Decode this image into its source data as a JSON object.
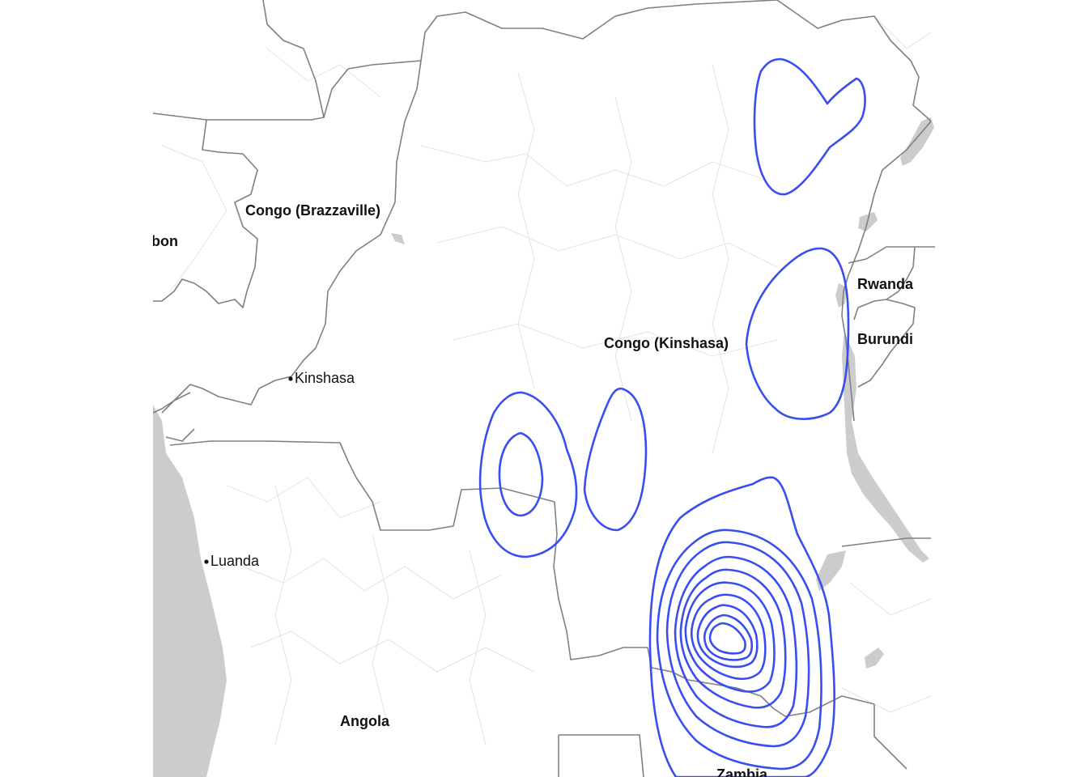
{
  "map": {
    "country_labels": {
      "congo_brazzaville": "Congo (Brazzaville)",
      "gabon_partial": "bon",
      "congo_kinshasa": "Congo (Kinshasa)",
      "rwanda": "Rwanda",
      "burundi": "Burundi",
      "angola": "Angola",
      "zambia": "Zambia"
    },
    "city_labels": {
      "kinshasa": "Kinshasa",
      "luanda": "Luanda"
    },
    "colors": {
      "background": "#ffffff",
      "panel_background": "#ffffff",
      "border": "#808080",
      "admin_lines": "#e3e3e3",
      "water": "#cccccc",
      "contour": "#3a4ef0"
    },
    "density_contours": {
      "northeast_cluster_levels": 1,
      "east_lake_cluster_levels": 1,
      "central_west_cluster_levels": 2,
      "central_cluster_levels": 1,
      "southeast_katanga_cluster_levels": 10
    }
  }
}
